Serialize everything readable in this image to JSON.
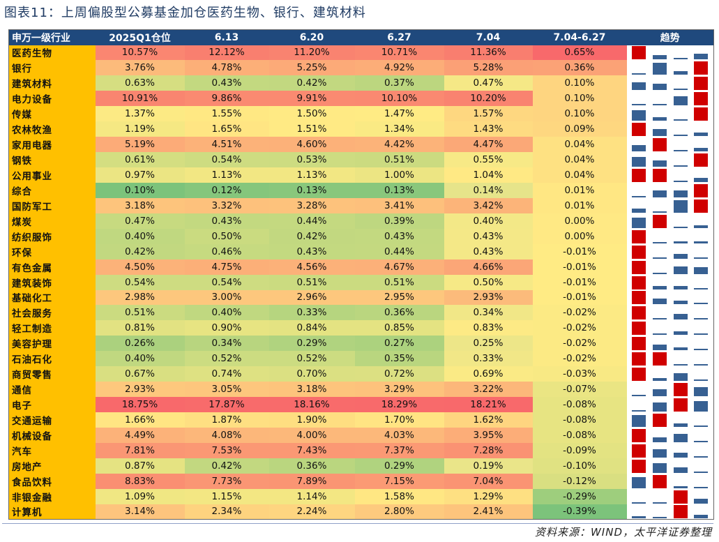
{
  "title": "图表11：上周偏股型公募基金加仓医药生物、银行、建筑材料",
  "headers": [
    "申万一级行业",
    "2025Q1仓位",
    "6.13",
    "6.20",
    "6.27",
    "7.04",
    "7.04-6.27",
    "趋势"
  ],
  "rows": [
    {
      "name": "医药生物",
      "values": [
        "10.57%",
        "12.12%",
        "11.20%",
        "10.71%",
        "11.36%",
        "0.65%"
      ]
    },
    {
      "name": "银行",
      "values": [
        "3.76%",
        "4.78%",
        "5.25%",
        "4.92%",
        "5.28%",
        "0.36%"
      ]
    },
    {
      "name": "建筑材料",
      "values": [
        "0.63%",
        "0.43%",
        "0.42%",
        "0.37%",
        "0.47%",
        "0.10%"
      ]
    },
    {
      "name": "电力设备",
      "values": [
        "10.91%",
        "9.86%",
        "9.91%",
        "10.10%",
        "10.20%",
        "0.10%"
      ]
    },
    {
      "name": "传媒",
      "values": [
        "1.37%",
        "1.55%",
        "1.50%",
        "1.47%",
        "1.57%",
        "0.10%"
      ]
    },
    {
      "name": "农林牧渔",
      "values": [
        "1.19%",
        "1.65%",
        "1.51%",
        "1.34%",
        "1.43%",
        "0.09%"
      ]
    },
    {
      "name": "家用电器",
      "values": [
        "5.19%",
        "4.51%",
        "4.60%",
        "4.42%",
        "4.47%",
        "0.04%"
      ]
    },
    {
      "name": "钢铁",
      "values": [
        "0.61%",
        "0.54%",
        "0.53%",
        "0.51%",
        "0.55%",
        "0.04%"
      ]
    },
    {
      "name": "公用事业",
      "values": [
        "0.97%",
        "1.13%",
        "1.13%",
        "1.00%",
        "1.04%",
        "0.04%"
      ]
    },
    {
      "name": "综合",
      "values": [
        "0.10%",
        "0.12%",
        "0.13%",
        "0.13%",
        "0.14%",
        "0.01%"
      ]
    },
    {
      "name": "国防军工",
      "values": [
        "3.18%",
        "3.32%",
        "3.28%",
        "3.41%",
        "3.42%",
        "0.01%"
      ]
    },
    {
      "name": "煤炭",
      "values": [
        "0.47%",
        "0.43%",
        "0.44%",
        "0.39%",
        "0.40%",
        "0.00%"
      ]
    },
    {
      "name": "纺织服饰",
      "values": [
        "0.40%",
        "0.50%",
        "0.42%",
        "0.43%",
        "0.43%",
        "0.00%"
      ]
    },
    {
      "name": "环保",
      "values": [
        "0.42%",
        "0.46%",
        "0.43%",
        "0.44%",
        "0.43%",
        "-0.01%"
      ]
    },
    {
      "name": "有色金属",
      "values": [
        "4.50%",
        "4.75%",
        "4.56%",
        "4.67%",
        "4.66%",
        "-0.01%"
      ]
    },
    {
      "name": "建筑装饰",
      "values": [
        "0.54%",
        "0.54%",
        "0.51%",
        "0.51%",
        "0.50%",
        "-0.01%"
      ]
    },
    {
      "name": "基础化工",
      "values": [
        "2.98%",
        "3.00%",
        "2.96%",
        "2.95%",
        "2.93%",
        "-0.01%"
      ]
    },
    {
      "name": "社会服务",
      "values": [
        "0.51%",
        "0.40%",
        "0.33%",
        "0.36%",
        "0.34%",
        "-0.02%"
      ]
    },
    {
      "name": "轻工制造",
      "values": [
        "0.81%",
        "0.90%",
        "0.84%",
        "0.85%",
        "0.83%",
        "-0.02%"
      ]
    },
    {
      "name": "美容护理",
      "values": [
        "0.26%",
        "0.34%",
        "0.29%",
        "0.27%",
        "0.25%",
        "-0.02%"
      ]
    },
    {
      "name": "石油石化",
      "values": [
        "0.40%",
        "0.52%",
        "0.52%",
        "0.35%",
        "0.33%",
        "-0.02%"
      ]
    },
    {
      "name": "商贸零售",
      "values": [
        "0.67%",
        "0.74%",
        "0.70%",
        "0.72%",
        "0.69%",
        "-0.03%"
      ]
    },
    {
      "name": "通信",
      "values": [
        "2.93%",
        "3.05%",
        "3.18%",
        "3.29%",
        "3.22%",
        "-0.07%"
      ]
    },
    {
      "name": "电子",
      "values": [
        "18.75%",
        "17.87%",
        "18.16%",
        "18.29%",
        "18.21%",
        "-0.08%"
      ]
    },
    {
      "name": "交通运输",
      "values": [
        "1.66%",
        "1.87%",
        "1.90%",
        "1.70%",
        "1.62%",
        "-0.08%"
      ]
    },
    {
      "name": "机械设备",
      "values": [
        "4.49%",
        "4.08%",
        "4.00%",
        "4.03%",
        "3.95%",
        "-0.08%"
      ]
    },
    {
      "name": "汽车",
      "values": [
        "7.81%",
        "7.53%",
        "7.43%",
        "7.37%",
        "7.28%",
        "-0.09%"
      ]
    },
    {
      "name": "房地产",
      "values": [
        "0.87%",
        "0.42%",
        "0.36%",
        "0.29%",
        "0.19%",
        "-0.10%"
      ]
    },
    {
      "name": "食品饮料",
      "values": [
        "8.83%",
        "7.73%",
        "7.89%",
        "7.15%",
        "7.04%",
        "-0.12%"
      ]
    },
    {
      "name": "非银金融",
      "values": [
        "1.09%",
        "1.15%",
        "1.14%",
        "1.58%",
        "1.29%",
        "-0.29%"
      ]
    },
    {
      "name": "计算机",
      "values": [
        "3.14%",
        "2.34%",
        "2.24%",
        "2.80%",
        "2.41%",
        "-0.39%"
      ]
    }
  ],
  "colors": {
    "header": "#1f497d",
    "industry": "#ffc000",
    "low": "#7cc37b",
    "mid": "#ffeb84",
    "high": "#f8696b",
    "spark": "#376092",
    "spark_max": "#d00000"
  },
  "source": "资料来源：WIND，太平洋证券整理"
}
